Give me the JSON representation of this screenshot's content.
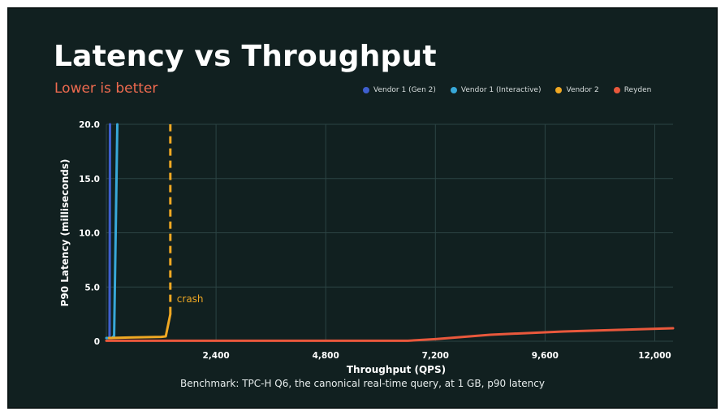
{
  "slide": {
    "title": "Latency vs Throughput",
    "subtitle": "Lower is better",
    "caption": "Benchmark: TPC-H Q6, the canonical real-time query, at 1 GB, p90 latency"
  },
  "colors": {
    "background": "#112020",
    "grid": "#2c4444",
    "subtitle": "#ee6a4f"
  },
  "chart_data": {
    "type": "line",
    "title": "Latency vs Throughput",
    "subtitle": "Lower is better",
    "xlabel": "Throughput (QPS)",
    "ylabel": "P90 Latency (milliseconds)",
    "xlim": [
      0,
      12400
    ],
    "ylim": [
      0,
      20
    ],
    "xticks": [
      2400,
      4800,
      7200,
      9600,
      12000
    ],
    "xtick_labels": [
      "2,400",
      "4,800",
      "7,200",
      "9,600",
      "12,000"
    ],
    "yticks": [
      0,
      5,
      10,
      15,
      20
    ],
    "ytick_labels": [
      "0",
      "5.0",
      "10.0",
      "15.0",
      "20.0"
    ],
    "grid": true,
    "legend_position": "top-right",
    "series": [
      {
        "name": "Vendor 1 (Gen 2)",
        "color": "#3f5fcf",
        "points": [
          [
            40,
            0.3
          ],
          [
            70,
            0.3
          ],
          [
            80,
            20
          ]
        ]
      },
      {
        "name": "Vendor 1 (Interactive)",
        "color": "#38a8d8",
        "points": [
          [
            0,
            0.3
          ],
          [
            120,
            0.3
          ],
          [
            170,
            0.5
          ],
          [
            240,
            20
          ]
        ]
      },
      {
        "name": "Vendor 2",
        "color": "#f0a823",
        "points": [
          [
            60,
            0.3
          ],
          [
            500,
            0.35
          ],
          [
            1200,
            0.4
          ],
          [
            1300,
            0.45
          ],
          [
            1400,
            2.5
          ],
          [
            1400,
            20
          ]
        ],
        "dashed_from_index": 4
      },
      {
        "name": "Reyden",
        "color": "#e9583c",
        "points": [
          [
            0,
            0.05
          ],
          [
            3000,
            0.05
          ],
          [
            6600,
            0.05
          ],
          [
            7200,
            0.2
          ],
          [
            8400,
            0.6
          ],
          [
            10000,
            0.9
          ],
          [
            11200,
            1.05
          ],
          [
            12400,
            1.2
          ]
        ]
      }
    ],
    "annotations": [
      {
        "text": "crash",
        "x": 1400,
        "y": 3.9,
        "color": "#f0a823"
      }
    ]
  }
}
